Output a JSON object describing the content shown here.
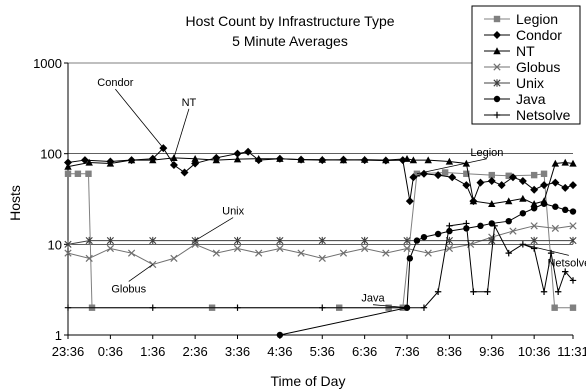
{
  "chart_data": {
    "type": "line",
    "title": "Host Count by Infrastructure Type",
    "subtitle": "5 Minute Averages",
    "xlabel": "Time of Day",
    "ylabel": "Hosts",
    "yscale": "log",
    "ylim": [
      1,
      1000
    ],
    "yticks": [
      "1",
      "10",
      "100",
      "1000"
    ],
    "xlim": [
      "23:36",
      "11:31"
    ],
    "xticks": [
      "23:36",
      "0:36",
      "1:36",
      "2:36",
      "3:36",
      "4:36",
      "5:36",
      "6:36",
      "7:36",
      "8:36",
      "9:36",
      "10:36",
      "11:31"
    ],
    "grid": "horizontal major gridlines",
    "legend_position": "top-right",
    "series": [
      {
        "name": "Legion",
        "color": "#808080",
        "marker": "square",
        "points": [
          [
            "23:36",
            60
          ],
          [
            "23:50",
            60
          ],
          [
            "0:05",
            60
          ],
          [
            "0:10",
            2
          ],
          [
            "3:00",
            2
          ],
          [
            "6:00",
            2
          ],
          [
            "7:10",
            2
          ],
          [
            "7:30",
            2
          ],
          [
            "7:50",
            60
          ],
          [
            "8:30",
            62
          ],
          [
            "9:00",
            60
          ],
          [
            "9:36",
            58
          ],
          [
            "10:00",
            57
          ],
          [
            "10:36",
            58
          ],
          [
            "10:50",
            60
          ],
          [
            "11:05",
            2
          ],
          [
            "11:31",
            2
          ]
        ]
      },
      {
        "name": "Condor",
        "color": "#000000",
        "marker": "diamond",
        "points": [
          [
            "23:36",
            80
          ],
          [
            "0:00",
            85
          ],
          [
            "0:36",
            82
          ],
          [
            "1:06",
            85
          ],
          [
            "1:36",
            88
          ],
          [
            "1:51",
            115
          ],
          [
            "2:06",
            75
          ],
          [
            "2:21",
            62
          ],
          [
            "2:36",
            78
          ],
          [
            "3:06",
            90
          ],
          [
            "3:36",
            100
          ],
          [
            "3:51",
            105
          ],
          [
            "4:06",
            85
          ],
          [
            "4:36",
            88
          ],
          [
            "5:06",
            86
          ],
          [
            "5:36",
            85
          ],
          [
            "6:06",
            86
          ],
          [
            "6:36",
            85
          ],
          [
            "7:06",
            84
          ],
          [
            "7:30",
            85
          ],
          [
            "7:40",
            30
          ],
          [
            "7:45",
            55
          ],
          [
            "8:00",
            60
          ],
          [
            "8:20",
            58
          ],
          [
            "8:40",
            55
          ],
          [
            "9:00",
            45
          ],
          [
            "9:10",
            30
          ],
          [
            "9:20",
            48
          ],
          [
            "9:36",
            50
          ],
          [
            "9:50",
            45
          ],
          [
            "10:06",
            55
          ],
          [
            "10:20",
            50
          ],
          [
            "10:36",
            40
          ],
          [
            "10:50",
            45
          ],
          [
            "11:06",
            48
          ],
          [
            "11:20",
            42
          ],
          [
            "11:31",
            45
          ]
        ]
      },
      {
        "name": "NT",
        "color": "#000000",
        "marker": "triangle",
        "points": [
          [
            "23:36",
            72
          ],
          [
            "0:06",
            80
          ],
          [
            "0:36",
            78
          ],
          [
            "1:06",
            85
          ],
          [
            "1:36",
            85
          ],
          [
            "2:06",
            90
          ],
          [
            "2:36",
            88
          ],
          [
            "3:06",
            85
          ],
          [
            "3:36",
            87
          ],
          [
            "4:06",
            88
          ],
          [
            "4:36",
            88
          ],
          [
            "5:06",
            86
          ],
          [
            "5:36",
            86
          ],
          [
            "6:06",
            85
          ],
          [
            "6:36",
            86
          ],
          [
            "7:06",
            85
          ],
          [
            "7:36",
            88
          ],
          [
            "7:45",
            85
          ],
          [
            "8:06",
            85
          ],
          [
            "8:36",
            82
          ],
          [
            "9:00",
            78
          ],
          [
            "9:10",
            30
          ],
          [
            "9:36",
            28
          ],
          [
            "10:00",
            30
          ],
          [
            "10:20",
            32
          ],
          [
            "10:36",
            28
          ],
          [
            "10:50",
            30
          ],
          [
            "11:06",
            78
          ],
          [
            "11:20",
            80
          ],
          [
            "11:31",
            78
          ]
        ]
      },
      {
        "name": "Globus",
        "color": "#707070",
        "marker": "x",
        "points": [
          [
            "23:36",
            8
          ],
          [
            "0:06",
            7
          ],
          [
            "0:36",
            9
          ],
          [
            "1:06",
            8
          ],
          [
            "1:36",
            6
          ],
          [
            "2:06",
            7
          ],
          [
            "2:36",
            10
          ],
          [
            "3:06",
            8
          ],
          [
            "3:36",
            9
          ],
          [
            "4:06",
            8
          ],
          [
            "4:36",
            9
          ],
          [
            "5:06",
            8
          ],
          [
            "5:36",
            7
          ],
          [
            "6:06",
            8
          ],
          [
            "6:36",
            9
          ],
          [
            "7:06",
            8
          ],
          [
            "7:36",
            9
          ],
          [
            "8:06",
            8
          ],
          [
            "8:36",
            9
          ],
          [
            "9:06",
            10
          ],
          [
            "9:36",
            12
          ],
          [
            "10:06",
            14
          ],
          [
            "10:36",
            16
          ],
          [
            "11:06",
            15
          ],
          [
            "11:31",
            16
          ]
        ]
      },
      {
        "name": "Unix",
        "color": "#404040",
        "marker": "asterisk",
        "points": [
          [
            "23:36",
            10
          ],
          [
            "0:06",
            11
          ],
          [
            "0:36",
            11
          ],
          [
            "1:36",
            11
          ],
          [
            "2:36",
            11
          ],
          [
            "3:36",
            11
          ],
          [
            "4:36",
            11
          ],
          [
            "5:36",
            11
          ],
          [
            "6:36",
            11
          ],
          [
            "7:36",
            11
          ],
          [
            "8:36",
            11
          ],
          [
            "9:36",
            11
          ],
          [
            "10:36",
            11
          ],
          [
            "11:31",
            11
          ]
        ]
      },
      {
        "name": "Java",
        "color": "#000000",
        "marker": "circle",
        "points": [
          [
            "4:36",
            1
          ],
          [
            "7:36",
            2
          ],
          [
            "7:40",
            7
          ],
          [
            "7:50",
            11
          ],
          [
            "8:00",
            12
          ],
          [
            "8:20",
            13
          ],
          [
            "8:36",
            14
          ],
          [
            "9:00",
            15
          ],
          [
            "9:20",
            16
          ],
          [
            "9:36",
            17
          ],
          [
            "10:00",
            18
          ],
          [
            "10:20",
            22
          ],
          [
            "10:36",
            25
          ],
          [
            "10:50",
            28
          ],
          [
            "11:06",
            26
          ],
          [
            "11:20",
            24
          ],
          [
            "11:31",
            23
          ]
        ]
      },
      {
        "name": "Netsolve",
        "color": "#000000",
        "marker": "plus",
        "points": [
          [
            "23:36",
            2
          ],
          [
            "1:36",
            2
          ],
          [
            "3:36",
            2
          ],
          [
            "5:36",
            2
          ],
          [
            "7:36",
            2
          ],
          [
            "8:00",
            2
          ],
          [
            "8:20",
            3
          ],
          [
            "8:36",
            16
          ],
          [
            "9:00",
            17
          ],
          [
            "9:10",
            3
          ],
          [
            "9:30",
            3
          ],
          [
            "9:40",
            16
          ],
          [
            "10:00",
            8
          ],
          [
            "10:20",
            10
          ],
          [
            "10:36",
            9
          ],
          [
            "10:50",
            3
          ],
          [
            "11:00",
            8
          ],
          [
            "11:10",
            3
          ],
          [
            "11:20",
            5
          ],
          [
            "11:31",
            4
          ]
        ]
      }
    ],
    "annotations": [
      {
        "text": "Condor",
        "series": "Condor"
      },
      {
        "text": "NT",
        "series": "NT"
      },
      {
        "text": "Legion",
        "series": "Legion"
      },
      {
        "text": "Unix",
        "series": "Unix"
      },
      {
        "text": "Globus",
        "series": "Globus"
      },
      {
        "text": "Java",
        "series": "Java"
      },
      {
        "text": "Netsolve",
        "series": "Netsolve"
      }
    ]
  }
}
